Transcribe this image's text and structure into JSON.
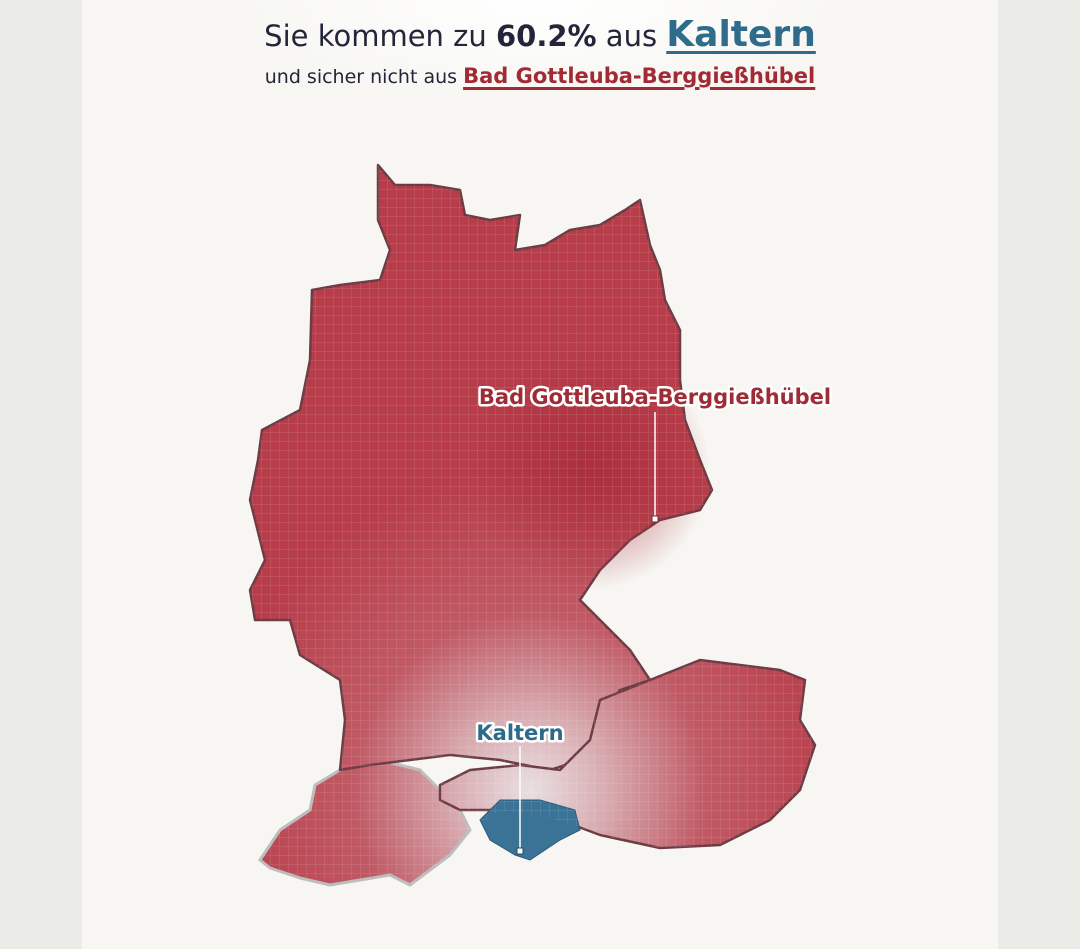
{
  "header": {
    "line1": {
      "prefix": "Sie kommen zu",
      "share": "60.2%",
      "middle": "aus",
      "place": "Kaltern"
    },
    "line2": {
      "prefix": "und sicher nicht aus",
      "place": "Bad Gottleuba-Berggießhübel"
    }
  },
  "map": {
    "labels": [
      {
        "text": "Bad Gottleuba-Berggießhübel"
      },
      {
        "text": "Kaltern"
      }
    ]
  }
}
